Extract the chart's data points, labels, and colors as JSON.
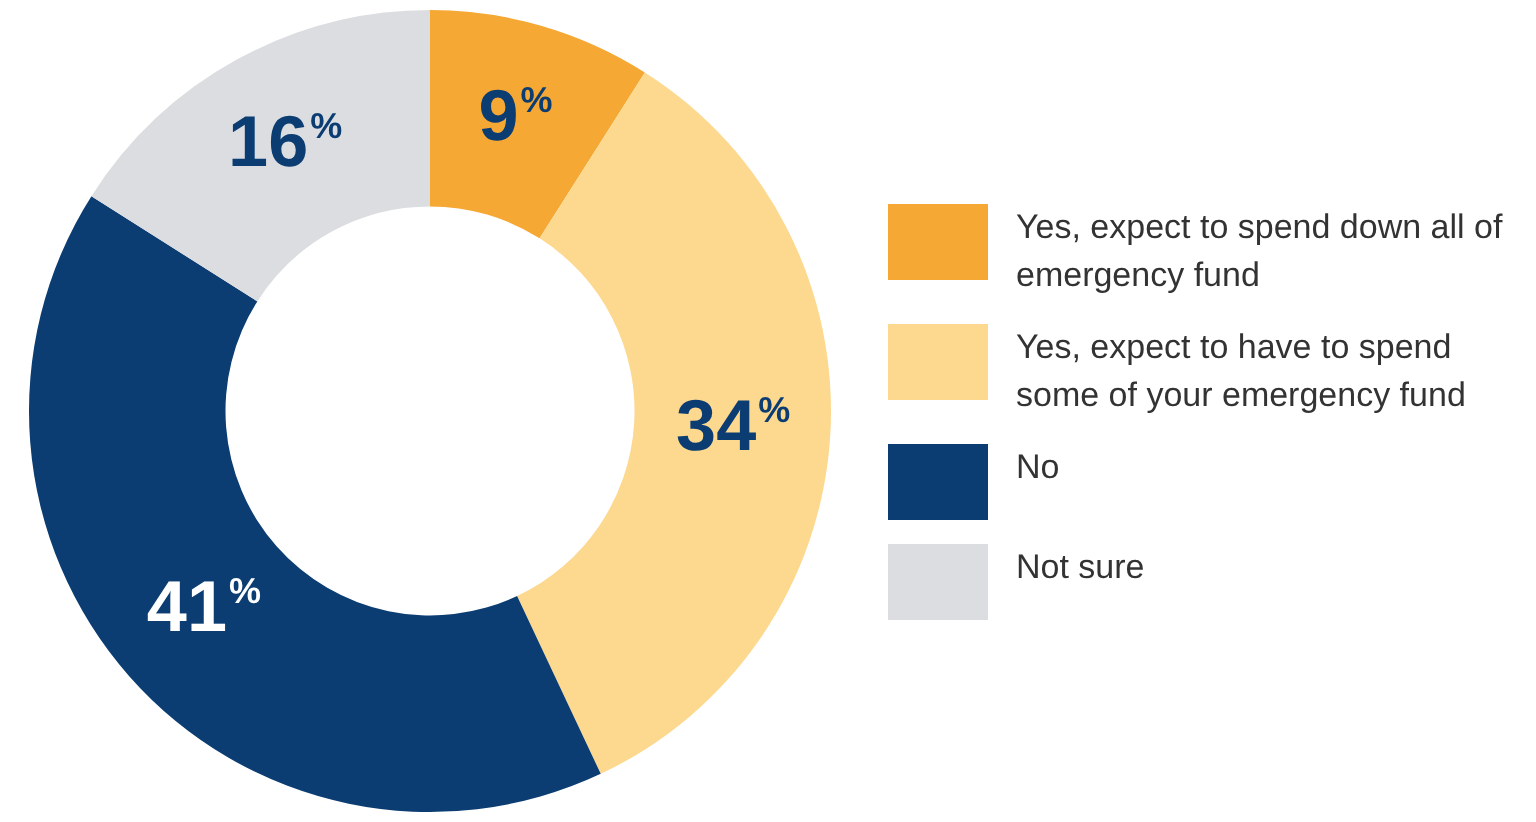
{
  "chart_data": {
    "type": "donut",
    "categories": [
      "Yes, expect to spend down all of emergency fund",
      "Yes, expect to have to spend some of your emergency fund",
      "No",
      "Not sure"
    ],
    "values": [
      9,
      34,
      41,
      16
    ],
    "colors": [
      "#f5a833",
      "#fdd88f",
      "#0b3d72",
      "#dcdde0"
    ],
    "value_labels": [
      "9%",
      "34%",
      "41%",
      "16%"
    ],
    "legend": "right"
  }
}
